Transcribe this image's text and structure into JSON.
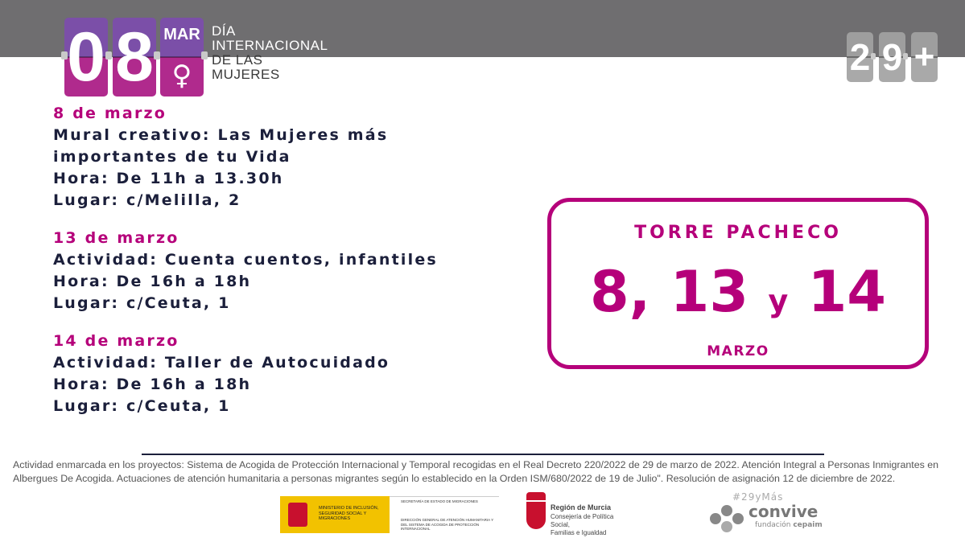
{
  "header": {
    "day_digit_1": "0",
    "day_digit_2": "8",
    "month_abbr": "MAR",
    "venus_symbol": "♀",
    "title_lines": [
      "DÍA",
      "INTERNACIONAL",
      "DE LAS",
      "MUJERES"
    ],
    "counter_digits": [
      "2",
      "9",
      "+"
    ]
  },
  "events": [
    {
      "date": "8 de marzo",
      "lines": [
        "Mural creativo: Las Mujeres más",
        "importantes de tu Vida",
        "Hora: De 11h a 13.30h",
        "Lugar: c/Melilla, 2"
      ]
    },
    {
      "date": "13 de marzo",
      "lines": [
        "Actividad: Cuenta cuentos, infantiles",
        "Hora: De 16h a 18h",
        "Lugar: c/Ceuta, 1"
      ]
    },
    {
      "date": "14 de marzo",
      "lines": [
        "Actividad: Taller de Autocuidado",
        "Hora: De 16h a 18h",
        "Lugar: c/Ceuta, 1"
      ]
    }
  ],
  "card": {
    "place": "TORRE PACHECO",
    "days_a": "8, 13",
    "conj": "y",
    "days_b": "14",
    "month": "MARZO"
  },
  "footnote": "Actividad enmarcada en los proyectos: Sistema de Acogida de Protección Internacional y Temporal recogidas en el Real Decreto 220/2022 de 29 de marzo de 2022.  Atención Integral a Personas Inmigrantes en Albergues De Acogida.  Actuaciones de atención humanitaria a personas migrantes según lo establecido en la Orden ISM/680/2022 de 19 de Julio\". Resolución de asignación 12 de diciembre de 2022.",
  "logos": {
    "ministerio": "MINISTERIO DE INCLUSIÓN, SEGURIDAD SOCIAL Y MIGRACIONES",
    "secretaria": "SECRETARÍA DE ESTADO DE MIGRACIONES",
    "direccion": "DIRECCIÓN GENERAL DE ATENCIÓN HUMANITARIA Y DEL SISTEMA DE ACOGIDA DE PROTECCIÓN INTERNACIONAL",
    "murcia_title": "Región de Murcia",
    "murcia_sub_1": "Consejería de Política Social,",
    "murcia_sub_2": "Familias e Igualdad",
    "hashtag": "#29yMás",
    "convive": "convive",
    "fundacion": "fundación",
    "cepaim": "cepaim"
  },
  "colors": {
    "magenta": "#b5007a",
    "navy": "#1b1f3b",
    "grey_band": "#6f6e70",
    "purple_top": "#7b4fa8",
    "purple_bottom": "#b02a8d"
  }
}
